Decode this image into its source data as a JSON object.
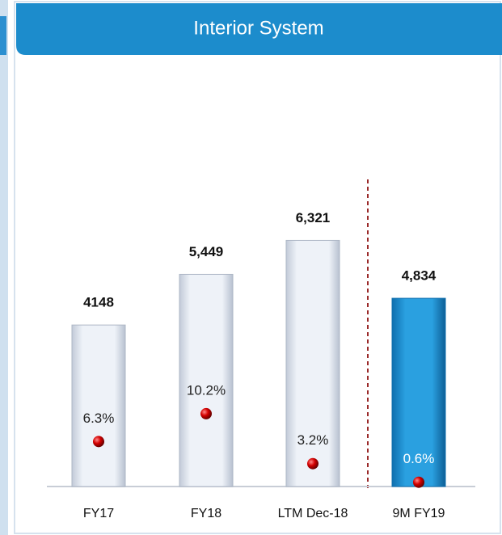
{
  "chart_data": {
    "type": "bar",
    "title": "Interior System",
    "categories": [
      "FY17",
      "FY18",
      "LTM Dec-18",
      "9M FY19"
    ],
    "series": [
      {
        "values": [
          4148,
          5449,
          6321,
          4834
        ],
        "value_labels": [
          "4148",
          "5,449",
          "6,321",
          "4,834"
        ],
        "colors": [
          "#dfe5ef",
          "#dfe5ef",
          "#dfe5ef",
          "#1a8fd2"
        ]
      },
      {
        "values": [
          6.3,
          10.2,
          3.2,
          0.6
        ],
        "value_labels": [
          "6.3%",
          "10.2%",
          "3.2%",
          "0.6%"
        ],
        "axis": "y2",
        "color": "#d40000",
        "label_colors": [
          "#222",
          "#222",
          "#222",
          "#ffffff"
        ]
      }
    ],
    "ylim": [
      0,
      11000
    ],
    "y2lim": [
      0,
      60
    ]
  }
}
